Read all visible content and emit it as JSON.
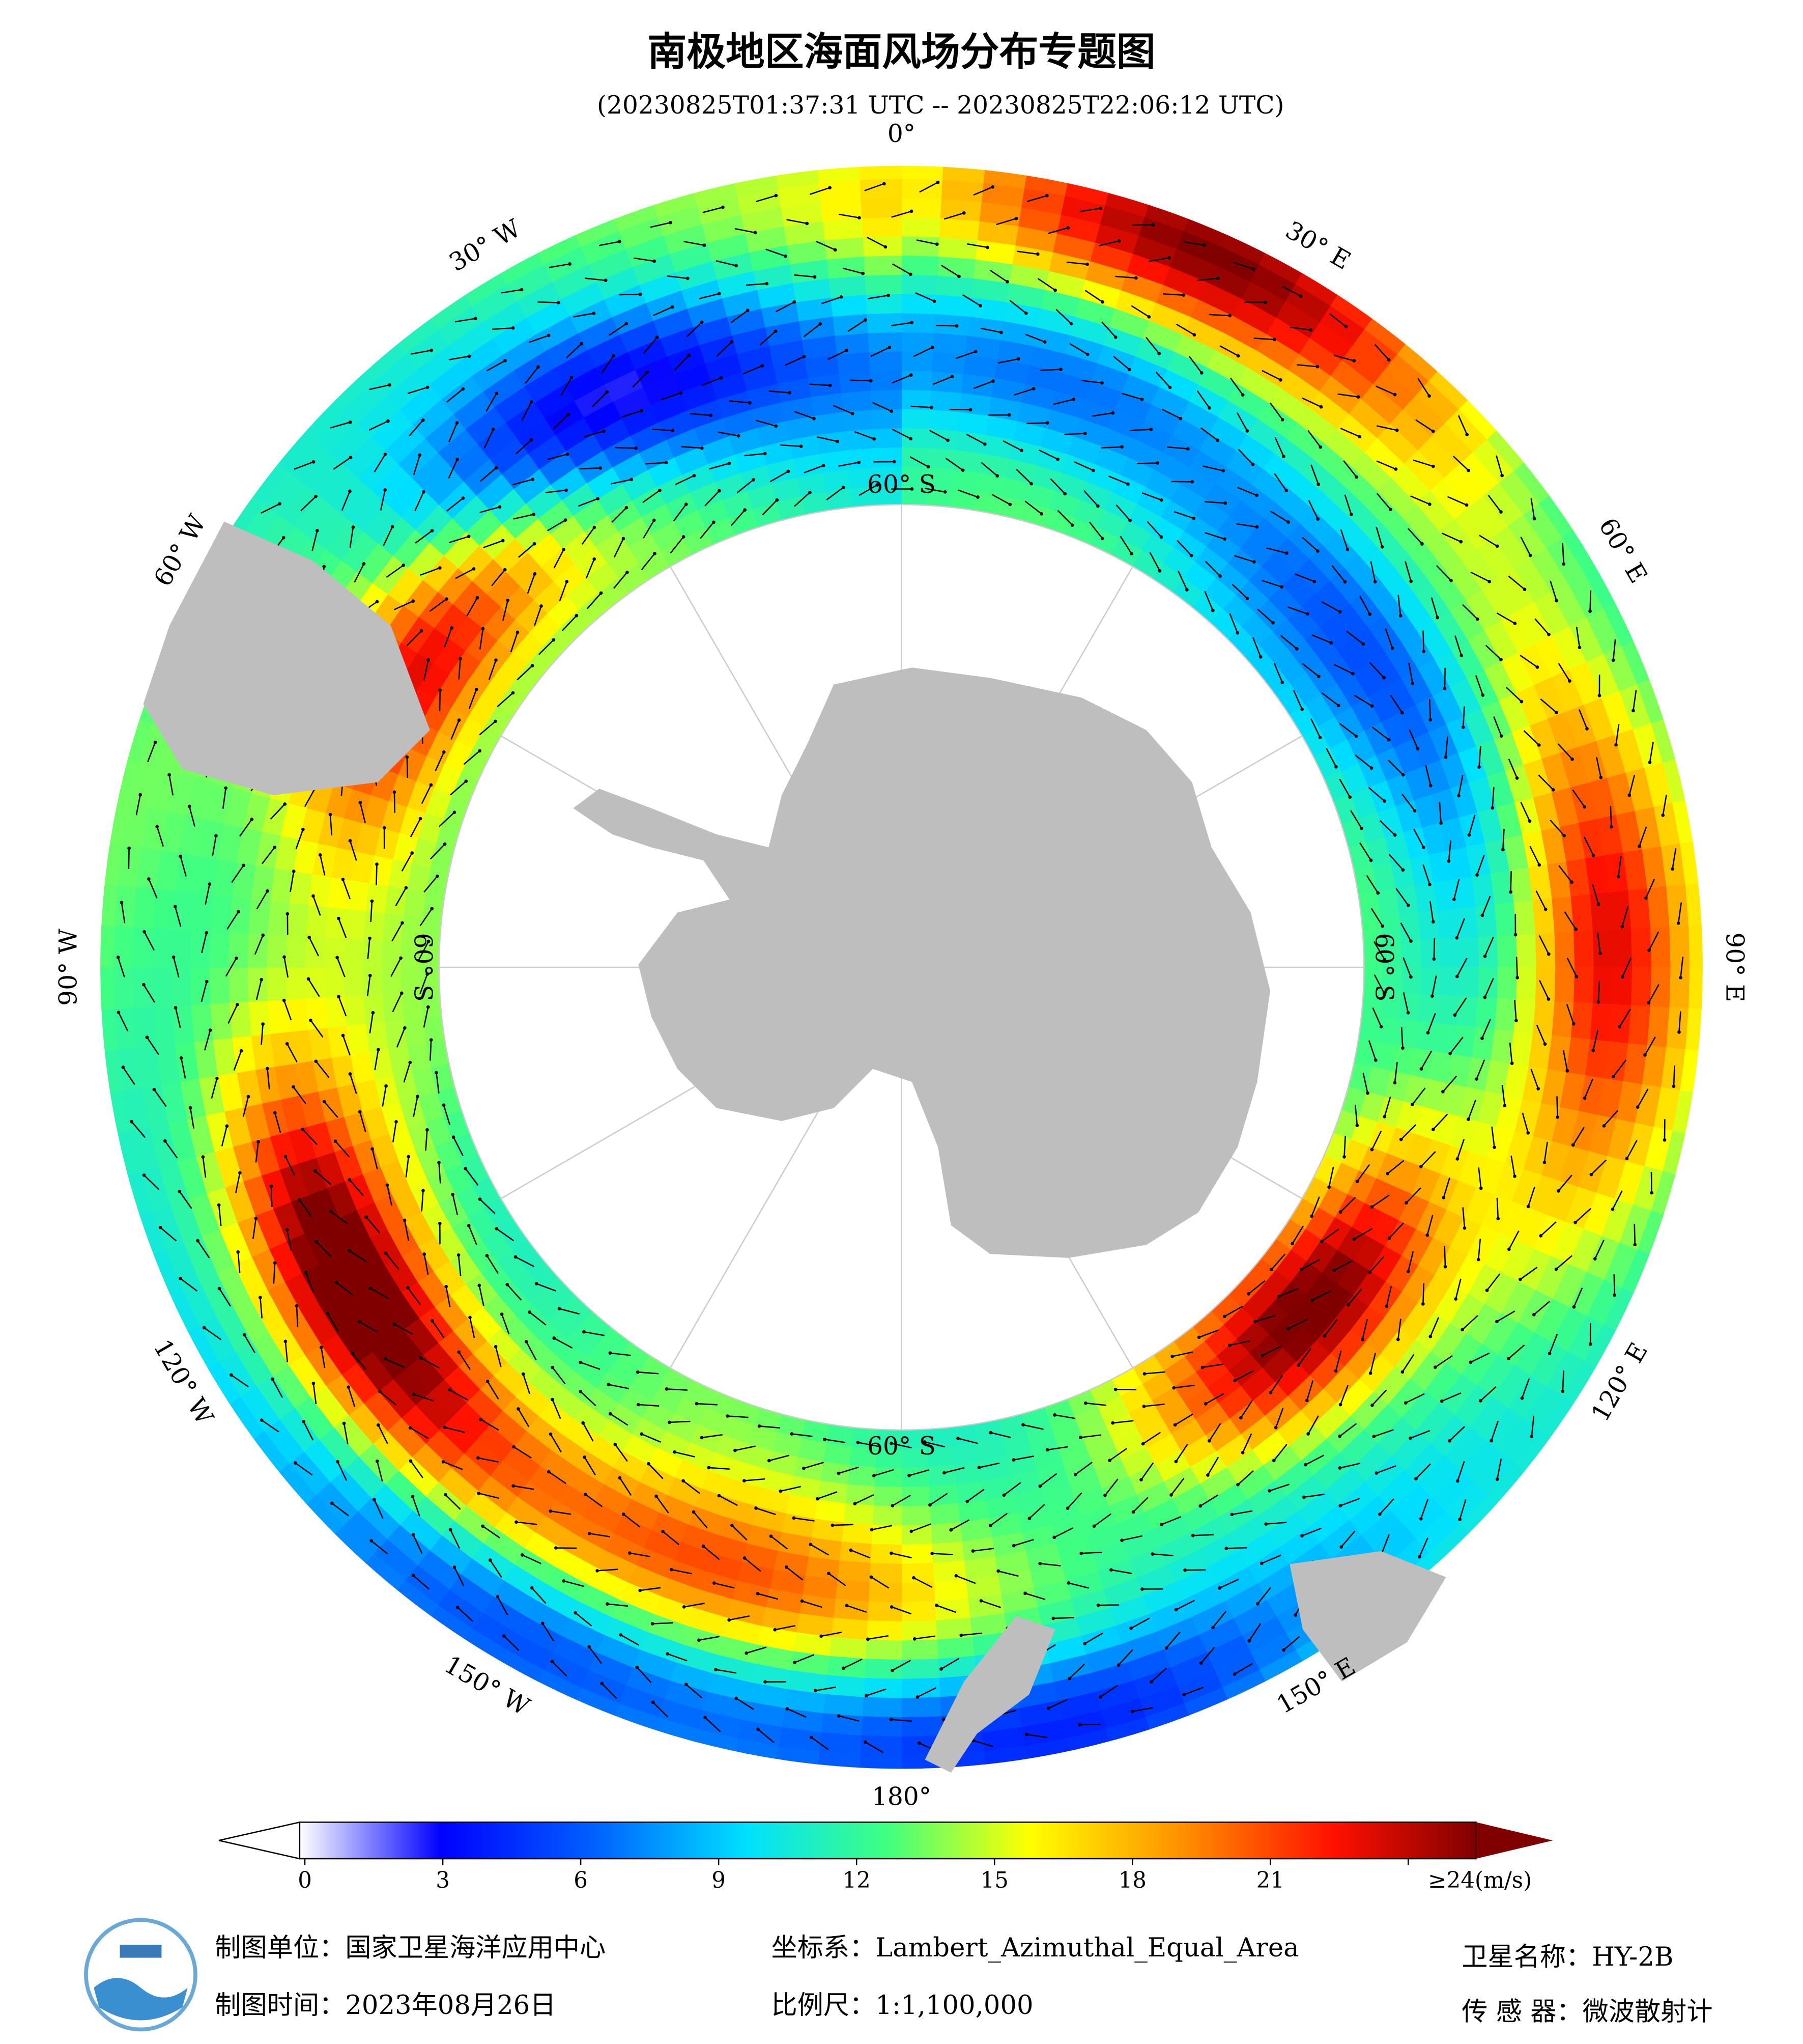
{
  "header": {
    "title": "南极地区海面风场分布专题图",
    "subtitle": "(20230825T01:37:31 UTC -- 20230825T22:06:12 UTC)"
  },
  "map": {
    "longitude_labels": [
      "0°",
      "30° E",
      "60° E",
      "90° E",
      "120° E",
      "150° E",
      "180°",
      "150° W",
      "120° W",
      "90° W",
      "60° W",
      "30° W"
    ],
    "latitude_label": "60° S"
  },
  "colorbar": {
    "range": [
      0,
      24
    ],
    "ticks": [
      0,
      3,
      6,
      9,
      12,
      15,
      18,
      21,
      {
        "value": 24,
        "label": "≥24(m/s)"
      }
    ]
  },
  "footer": {
    "unit": "制图单位：国家卫星海洋应用中心",
    "time": "制图时间：2023年08月26日",
    "projection": "坐标系：Lambert_Azimuthal_Equal_Area",
    "scale": "比例尺：1:1,100,000",
    "satellite": "卫星名称：HY-2B",
    "sensor": "传 感 器：微波散射计"
  }
}
